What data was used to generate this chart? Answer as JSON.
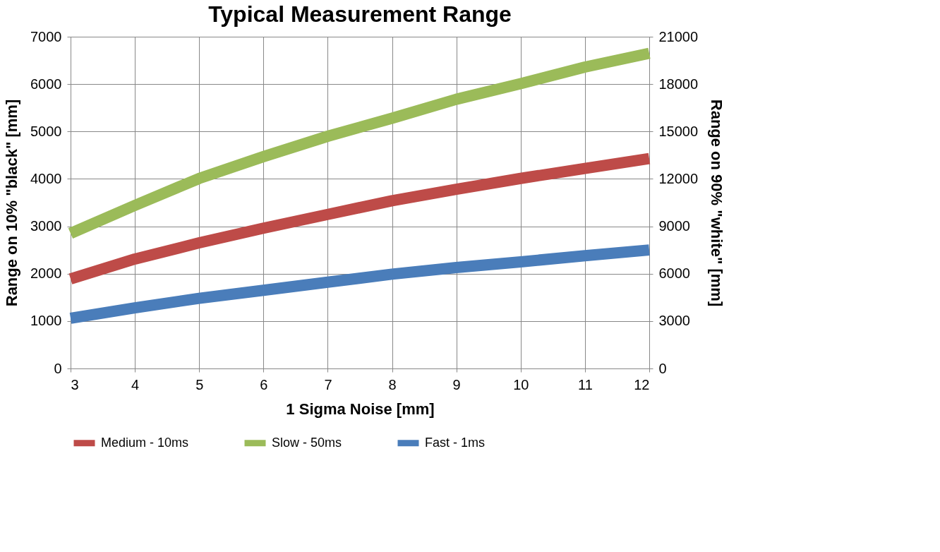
{
  "chart_data": {
    "type": "line",
    "title": "Typical Measurement Range",
    "xlabel": "1 Sigma Noise [mm]",
    "ylabel": "Range on 10% \"black\"  [mm]",
    "y2label": "Range on 90% \"white\" [mm]",
    "x": [
      3,
      4,
      5,
      6,
      7,
      8,
      9,
      10,
      11,
      12
    ],
    "series": [
      {
        "name": "Medium - 10ms",
        "color": "#be4b48",
        "values": [
          1890,
          2310,
          2650,
          2960,
          3250,
          3540,
          3780,
          4010,
          4220,
          4430
        ]
      },
      {
        "name": "Slow - 50ms",
        "color": "#9bbb59",
        "values": [
          2850,
          3440,
          4010,
          4470,
          4900,
          5280,
          5680,
          6010,
          6360,
          6650
        ]
      },
      {
        "name": "Fast - 1ms",
        "color": "#4a7dba",
        "values": [
          1060,
          1280,
          1480,
          1650,
          1820,
          1990,
          2130,
          2250,
          2380,
          2500
        ]
      }
    ],
    "xlim": [
      3,
      12
    ],
    "xticks": [
      3,
      4,
      5,
      6,
      7,
      8,
      9,
      10,
      11,
      12
    ],
    "ylim": [
      0,
      7000
    ],
    "yticks": [
      0,
      1000,
      2000,
      3000,
      4000,
      5000,
      6000,
      7000
    ],
    "y2lim": [
      0,
      21000
    ],
    "y2ticks": [
      0,
      3000,
      6000,
      9000,
      12000,
      15000,
      18000,
      21000
    ],
    "grid": true,
    "legend": "bottom",
    "marker": "none",
    "line_style": "solid"
  }
}
